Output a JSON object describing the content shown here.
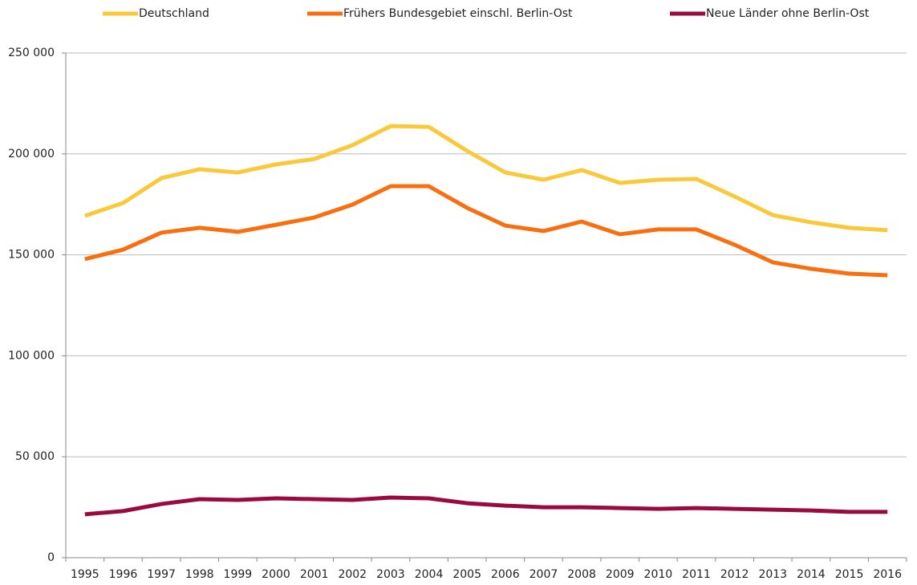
{
  "chart_data": {
    "type": "line",
    "categories": [
      "1995",
      "1996",
      "1997",
      "1998",
      "1999",
      "2000",
      "2001",
      "2002",
      "2003",
      "2004",
      "2005",
      "2006",
      "2007",
      "2008",
      "2009",
      "2010",
      "2011",
      "2012",
      "2013",
      "2014",
      "2015",
      "2016"
    ],
    "series": [
      {
        "name": "Deutschland",
        "color": "#f9c93b",
        "values": [
          169300,
          175700,
          188000,
          192400,
          190800,
          194800,
          197500,
          204300,
          213800,
          213400,
          201500,
          190800,
          187200,
          192000,
          185600,
          187200,
          187600,
          178900,
          169700,
          166100,
          163400,
          162200
        ]
      },
      {
        "name": "Frühers Bundesgebiet einschl. Berlin-Ost",
        "color": "#f96e0f",
        "values": [
          147900,
          152600,
          161000,
          163400,
          161400,
          164900,
          168500,
          174900,
          184000,
          184000,
          173300,
          164500,
          161800,
          166500,
          160200,
          162600,
          162600,
          155000,
          146300,
          143100,
          140700,
          139900
        ]
      },
      {
        "name": "Neue Länder ohne Berlin-Ost",
        "color": "#9a0a3e",
        "values": [
          21500,
          23100,
          26600,
          29000,
          28600,
          29400,
          29000,
          28600,
          29800,
          29400,
          27000,
          25800,
          25000,
          25000,
          24600,
          24200,
          24600,
          24200,
          23800,
          23400,
          22700,
          22700
        ]
      }
    ],
    "ylim": [
      0,
      250000
    ],
    "yticks": [
      0,
      {
        "value": 50000,
        "label": "50 000"
      },
      {
        "value": 100000,
        "label": "100 000"
      },
      {
        "value": 150000,
        "label": "150 000"
      },
      {
        "value": 200000,
        "label": "200 000"
      },
      {
        "value": 250000,
        "label": "250 000"
      }
    ],
    "grid": true,
    "legend": "top"
  }
}
